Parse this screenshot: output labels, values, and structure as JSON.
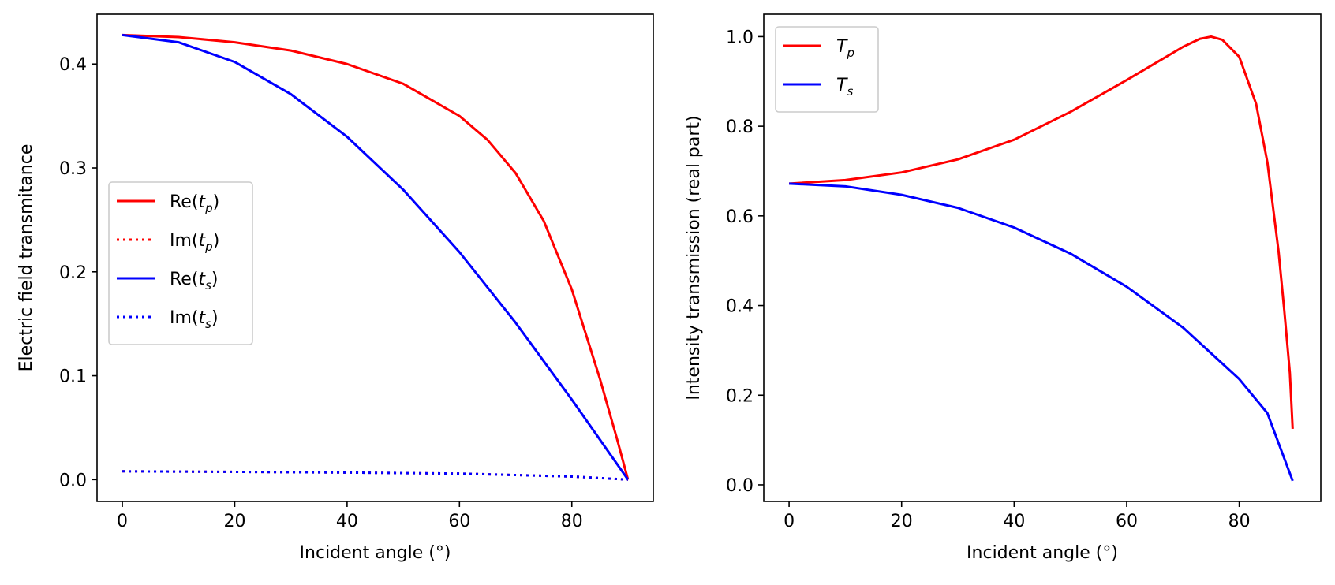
{
  "chart_data": [
    {
      "type": "line",
      "xlabel": "Incident angle (°)",
      "ylabel": "Electric field transmitance",
      "xlim": [
        -4.5,
        94.5
      ],
      "ylim": [
        -0.021,
        0.448
      ],
      "xticks": [
        0,
        20,
        40,
        60,
        80
      ],
      "xtick_labels": [
        "0",
        "20",
        "40",
        "60",
        "80"
      ],
      "yticks": [
        0.0,
        0.1,
        0.2,
        0.3,
        0.4
      ],
      "ytick_labels": [
        "0.0",
        "0.1",
        "0.2",
        "0.3",
        "0.4"
      ],
      "legend_position": "center-left",
      "series": [
        {
          "name": "Re(t_p)",
          "label_base": "Re(",
          "label_var": "t",
          "label_sub": "p",
          "label_close": ")",
          "color": "#ff0000",
          "style": "solid",
          "x": [
            0,
            10,
            20,
            30,
            40,
            50,
            60,
            65,
            70,
            75,
            80,
            85,
            88,
            90
          ],
          "y": [
            0.428,
            0.426,
            0.421,
            0.413,
            0.4,
            0.381,
            0.35,
            0.327,
            0.295,
            0.249,
            0.183,
            0.097,
            0.04,
            0.0
          ]
        },
        {
          "name": "Im(t_p)",
          "label_base": "Im(",
          "label_var": "t",
          "label_sub": "p",
          "label_close": ")",
          "color": "#ff0000",
          "style": "dotted",
          "x": [
            0,
            20,
            40,
            60,
            80,
            90
          ],
          "y": [
            0.008,
            0.0075,
            0.0068,
            0.0058,
            0.003,
            0.0
          ]
        },
        {
          "name": "Re(t_s)",
          "label_base": "Re(",
          "label_var": "t",
          "label_sub": "s",
          "label_close": ")",
          "color": "#0000ff",
          "style": "solid",
          "x": [
            0,
            10,
            20,
            30,
            40,
            50,
            60,
            70,
            80,
            90
          ],
          "y": [
            0.428,
            0.421,
            0.402,
            0.371,
            0.33,
            0.279,
            0.219,
            0.151,
            0.077,
            0.0
          ]
        },
        {
          "name": "Im(t_s)",
          "label_base": "Im(",
          "label_var": "t",
          "label_sub": "s",
          "label_close": ")",
          "color": "#0000ff",
          "style": "dotted",
          "x": [
            0,
            20,
            40,
            60,
            80,
            90
          ],
          "y": [
            0.008,
            0.0075,
            0.0068,
            0.0058,
            0.003,
            0.0
          ]
        }
      ]
    },
    {
      "type": "line",
      "xlabel": "Incident angle (°)",
      "ylabel": "Intensity transmission (real part)",
      "xlim": [
        -4.5,
        94.5
      ],
      "ylim": [
        -0.037,
        1.05
      ],
      "xticks": [
        0,
        20,
        40,
        60,
        80
      ],
      "xtick_labels": [
        "0",
        "20",
        "40",
        "60",
        "80"
      ],
      "yticks": [
        0.0,
        0.2,
        0.4,
        0.6,
        0.8,
        1.0
      ],
      "ytick_labels": [
        "0.0",
        "0.2",
        "0.4",
        "0.6",
        "0.8",
        "1.0"
      ],
      "legend_position": "upper-left",
      "series": [
        {
          "name": "T_p",
          "label_base": "",
          "label_var": "T",
          "label_sub": "p",
          "label_close": "",
          "color": "#ff0000",
          "style": "solid",
          "x": [
            0,
            10,
            20,
            30,
            40,
            50,
            60,
            65,
            70,
            73,
            75,
            77,
            80,
            83,
            85,
            87,
            88,
            89,
            89.5
          ],
          "y": [
            0.672,
            0.68,
            0.697,
            0.726,
            0.77,
            0.832,
            0.903,
            0.94,
            0.977,
            0.995,
            1.0,
            0.993,
            0.955,
            0.85,
            0.72,
            0.52,
            0.39,
            0.25,
            0.125
          ]
        },
        {
          "name": "T_s",
          "label_base": "",
          "label_var": "T",
          "label_sub": "s",
          "label_close": "",
          "color": "#0000ff",
          "style": "solid",
          "x": [
            0,
            10,
            20,
            30,
            40,
            50,
            60,
            70,
            80,
            85,
            89.5
          ],
          "y": [
            0.672,
            0.666,
            0.647,
            0.618,
            0.574,
            0.516,
            0.442,
            0.351,
            0.236,
            0.16,
            0.009
          ]
        }
      ]
    }
  ]
}
